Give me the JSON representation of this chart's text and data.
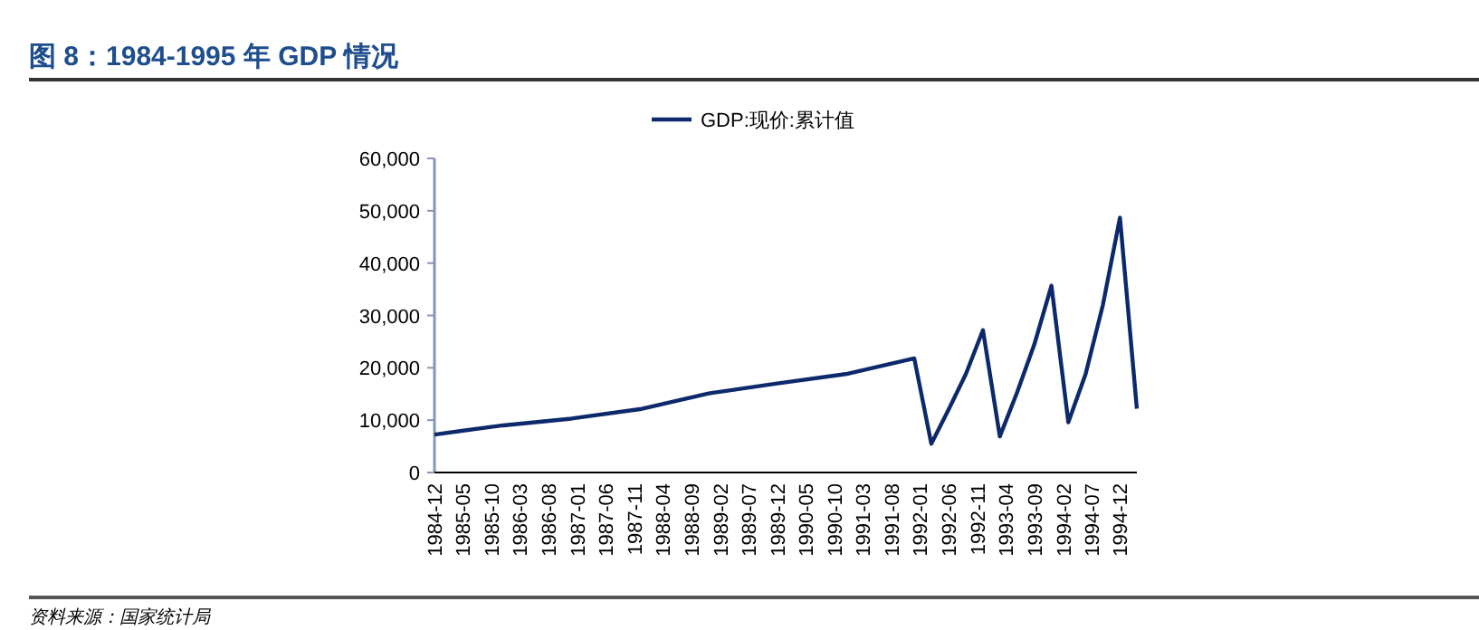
{
  "chart_data": {
    "type": "line",
    "title": "图 8：1984-1995 年 GDP 情况",
    "annotations": [
      "资料来源：国家统计局"
    ],
    "x": [
      "1984-12",
      "1985-12",
      "1986-12",
      "1987-12",
      "1988-12",
      "1989-12",
      "1990-12",
      "1991-12",
      "1992-03",
      "1992-06",
      "1992-09",
      "1992-12",
      "1993-03",
      "1993-06",
      "1993-09",
      "1993-12",
      "1994-03",
      "1994-06",
      "1994-09",
      "1994-12",
      "1995-03"
    ],
    "series": [
      {
        "name": "GDP:现价:累计值",
        "color": "#0c2a6b",
        "values": [
          7250,
          9000,
          10300,
          12100,
          15100,
          17000,
          18800,
          21800,
          5500,
          12000,
          18800,
          27200,
          6900,
          15300,
          24500,
          35700,
          9600,
          18800,
          32000,
          48700,
          12200
        ]
      }
    ],
    "xlim": [
      "1984-12",
      "1995-03"
    ],
    "xticks": [
      "1984-12",
      "1985-05",
      "1985-10",
      "1986-03",
      "1986-08",
      "1987-01",
      "1987-06",
      "1987-11",
      "1988-04",
      "1988-09",
      "1989-02",
      "1989-07",
      "1989-12",
      "1990-05",
      "1990-10",
      "1991-03",
      "1991-08",
      "1992-01",
      "1992-06",
      "1992-11",
      "1993-04",
      "1993-09",
      "1994-02",
      "1994-07",
      "1994-12"
    ],
    "ylim": [
      0,
      60000
    ],
    "yticks": [
      0,
      {
        "value": 10000,
        "label": "10,000"
      },
      {
        "value": 20000,
        "label": "20,000"
      },
      {
        "value": 30000,
        "label": "30,000"
      },
      {
        "value": 40000,
        "label": "40,000"
      },
      {
        "value": 50000,
        "label": "50,000"
      },
      {
        "value": 60000,
        "label": "60,000"
      }
    ],
    "legend": "top",
    "grid": false,
    "marker": "none",
    "line_style": "solid"
  }
}
